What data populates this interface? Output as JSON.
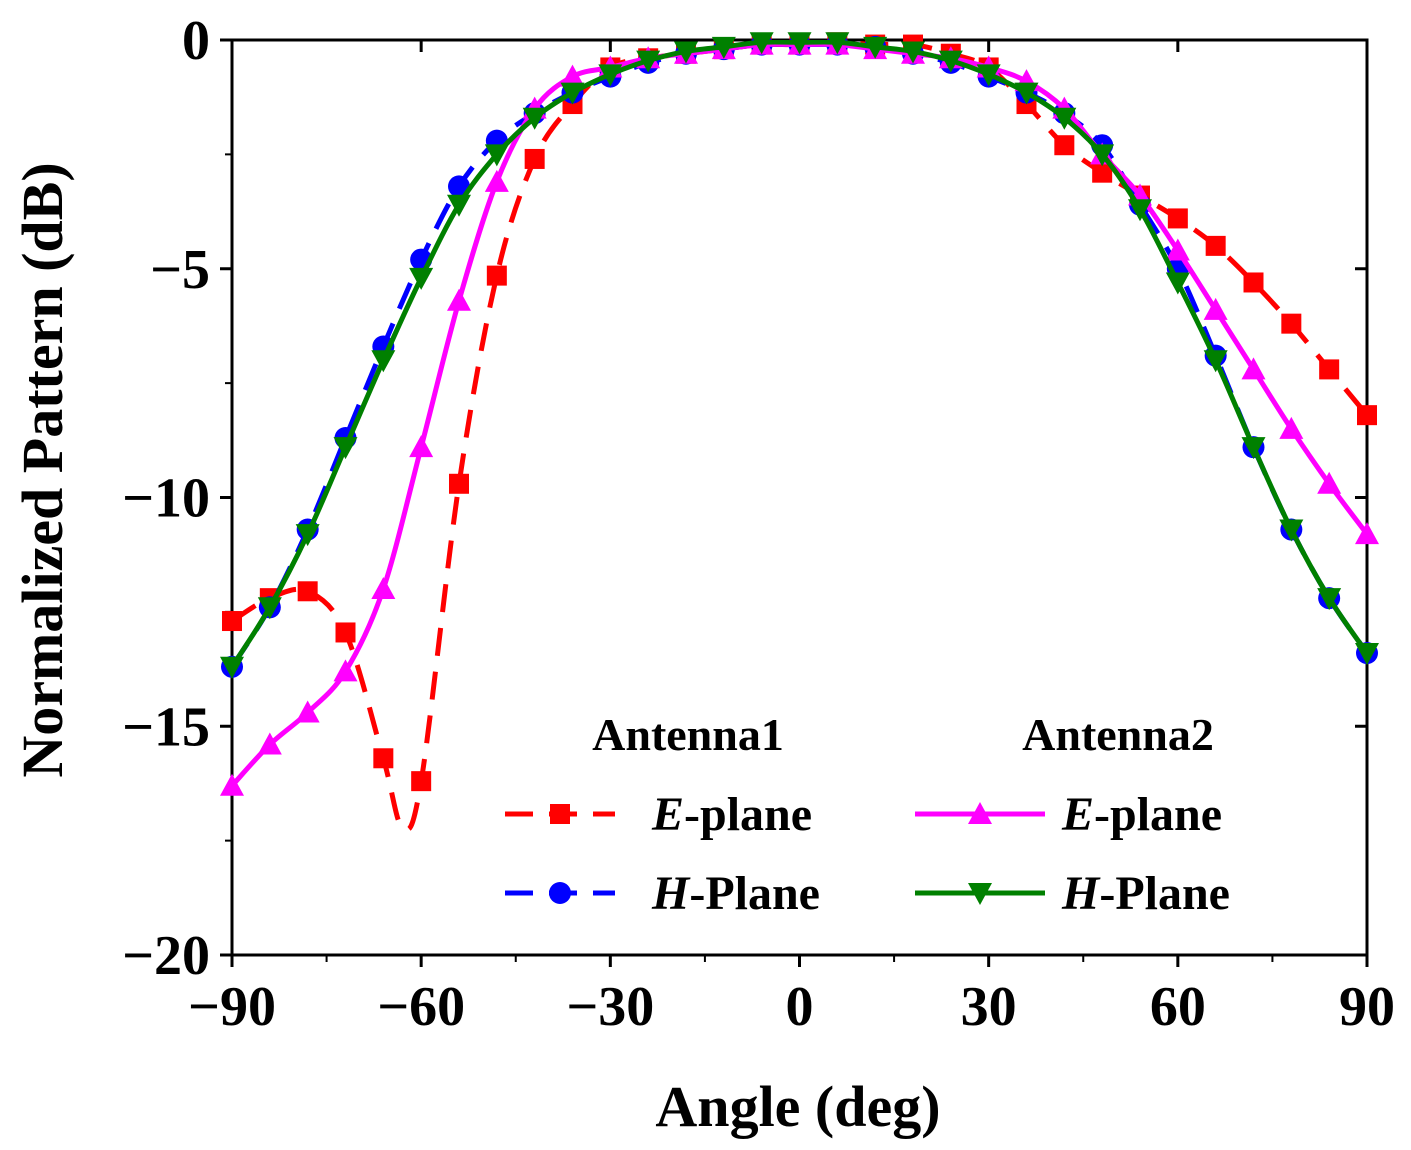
{
  "chart_data": {
    "type": "line",
    "xlabel": "Angle (deg)",
    "ylabel": "Normalized Pattern (dB)",
    "xlim": [
      -90,
      90
    ],
    "ylim": [
      -20,
      0
    ],
    "xticks": [
      -90,
      -60,
      -30,
      0,
      30,
      60,
      90
    ],
    "yticks": [
      0,
      -5,
      -10,
      -15,
      -20
    ],
    "xtick_labels": [
      "−90",
      "−60",
      "−30",
      "0",
      "30",
      "60",
      "90"
    ],
    "ytick_labels": [
      "0",
      "−5",
      "−10",
      "−15",
      "−20"
    ],
    "grid": false,
    "legend": {
      "placement": "bottom-right",
      "group1_title": "Antenna1",
      "group2_title": "Antenna2",
      "entries": [
        {
          "prefix": "E",
          "suffix": "-plane"
        },
        {
          "prefix": "H",
          "suffix": "-Plane"
        },
        {
          "prefix": "E",
          "suffix": "-plane"
        },
        {
          "prefix": "H",
          "suffix": "-Plane"
        }
      ]
    },
    "series": [
      {
        "group": "Antenna1",
        "color": "#ff0000",
        "dash": "dashed",
        "marker": "square",
        "x": [
          -90,
          -84,
          -78,
          -72,
          -66,
          -63,
          -60,
          -54,
          -48,
          -42,
          -36,
          -30,
          -24,
          -18,
          -12,
          -6,
          0,
          6,
          12,
          18,
          24,
          30,
          36,
          42,
          48,
          54,
          60,
          66,
          72,
          78,
          84,
          90
        ],
        "y": [
          -12.7,
          -12.2,
          -12.05,
          -12.95,
          -15.7,
          -17.2,
          -16.2,
          -9.7,
          -5.15,
          -2.6,
          -1.4,
          -0.6,
          -0.4,
          -0.3,
          -0.2,
          -0.1,
          -0.1,
          -0.05,
          -0.1,
          -0.1,
          -0.3,
          -0.6,
          -1.4,
          -2.3,
          -2.9,
          -3.4,
          -3.9,
          -4.5,
          -5.3,
          -6.2,
          -7.2,
          -8.2
        ],
        "marker_x": [
          -90,
          -84,
          -78,
          -72,
          -66,
          -60,
          -54,
          -48,
          -42,
          -36,
          -30,
          -24,
          -18,
          -12,
          -6,
          0,
          6,
          12,
          18,
          24,
          30,
          36,
          42,
          48,
          54,
          60,
          66,
          72,
          78,
          84,
          90
        ]
      },
      {
        "group": "Antenna1",
        "color": "#0000ff",
        "dash": "dashed",
        "marker": "circle",
        "x": [
          -90,
          -84,
          -78,
          -72,
          -66,
          -60,
          -54,
          -48,
          -42,
          -36,
          -30,
          -24,
          -18,
          -12,
          -6,
          0,
          6,
          12,
          18,
          24,
          30,
          36,
          42,
          48,
          54,
          60,
          66,
          72,
          78,
          84,
          90
        ],
        "y": [
          -13.7,
          -12.4,
          -10.7,
          -8.7,
          -6.7,
          -4.8,
          -3.2,
          -2.2,
          -1.6,
          -1.15,
          -0.8,
          -0.5,
          -0.3,
          -0.2,
          -0.1,
          -0.1,
          -0.1,
          -0.15,
          -0.3,
          -0.5,
          -0.8,
          -1.15,
          -1.6,
          -2.3,
          -3.6,
          -5.0,
          -6.9,
          -8.9,
          -10.7,
          -12.2,
          -13.4
        ]
      },
      {
        "group": "Antenna2",
        "color": "#ff00ff",
        "dash": "solid",
        "marker": "triangle-up",
        "x": [
          -90,
          -84,
          -78,
          -72,
          -66,
          -60,
          -54,
          -48,
          -42,
          -36,
          -30,
          -24,
          -18,
          -12,
          -6,
          0,
          6,
          12,
          18,
          24,
          30,
          36,
          42,
          48,
          54,
          60,
          66,
          72,
          78,
          84,
          90
        ],
        "y": [
          -16.3,
          -15.4,
          -14.7,
          -13.8,
          -12.0,
          -8.9,
          -5.7,
          -3.1,
          -1.5,
          -0.8,
          -0.6,
          -0.4,
          -0.3,
          -0.2,
          -0.1,
          -0.1,
          -0.1,
          -0.2,
          -0.3,
          -0.4,
          -0.6,
          -0.9,
          -1.5,
          -2.5,
          -3.4,
          -4.6,
          -5.9,
          -7.2,
          -8.5,
          -9.7,
          -10.8
        ]
      },
      {
        "group": "Antenna2",
        "color": "#008000",
        "dash": "solid",
        "marker": "triangle-down",
        "x": [
          -90,
          -84,
          -78,
          -72,
          -66,
          -60,
          -54,
          -48,
          -42,
          -36,
          -30,
          -24,
          -18,
          -12,
          -6,
          0,
          6,
          12,
          18,
          24,
          30,
          36,
          42,
          48,
          54,
          60,
          66,
          72,
          78,
          84,
          90
        ],
        "y": [
          -13.7,
          -12.4,
          -10.8,
          -8.9,
          -7.0,
          -5.2,
          -3.6,
          -2.5,
          -1.7,
          -1.15,
          -0.75,
          -0.45,
          -0.25,
          -0.15,
          -0.05,
          -0.05,
          -0.05,
          -0.15,
          -0.25,
          -0.45,
          -0.75,
          -1.15,
          -1.7,
          -2.5,
          -3.7,
          -5.3,
          -7.0,
          -8.9,
          -10.7,
          -12.2,
          -13.4
        ]
      }
    ]
  }
}
